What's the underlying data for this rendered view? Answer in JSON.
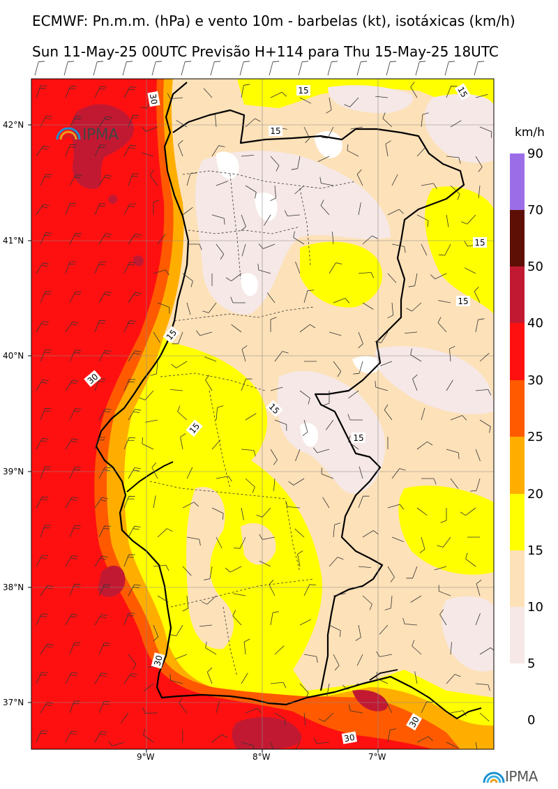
{
  "header": {
    "title": "ECMWF: Pn.m.m. (hPa) e vento 10m - barbelas (kt), isotáxicas (km/h)",
    "subtitle": "Sun 11-May-25 00UTC Previsão H+114 para Thu 15-May-25 18UTC"
  },
  "axes": {
    "lat_labels": [
      "42°N",
      "41°N",
      "40°N",
      "39°N",
      "38°N",
      "37°N"
    ],
    "lon_labels": [
      "9°W",
      "8°W",
      "7°W"
    ]
  },
  "colorbar": {
    "unit": "km/h",
    "labels": [
      "90",
      "70",
      "50",
      "40",
      "30",
      "25",
      "20",
      "15",
      "10",
      "5",
      "0"
    ],
    "colors": [
      "#9b6ee8",
      "#5e0f05",
      "#c21932",
      "#ff1010",
      "#ff5a00",
      "#ffae00",
      "#ffff00",
      "#fde1b8",
      "#f5e8e6"
    ]
  },
  "contour_labels": [
    "15",
    "15",
    "15",
    "15",
    "15",
    "15",
    "15",
    "15",
    "15",
    "30",
    "30",
    "30",
    "30",
    "30"
  ],
  "logo": {
    "text": "IPMA"
  },
  "palette": {
    "sea": "#ff1010",
    "coast_band": "#ff5a00",
    "coast_band2": "#ffae00",
    "yellow": "#ffff00",
    "tan": "#fde1b8",
    "pale": "#f5e8e6",
    "white": "#ffffff",
    "dark_red": "#c21932"
  }
}
